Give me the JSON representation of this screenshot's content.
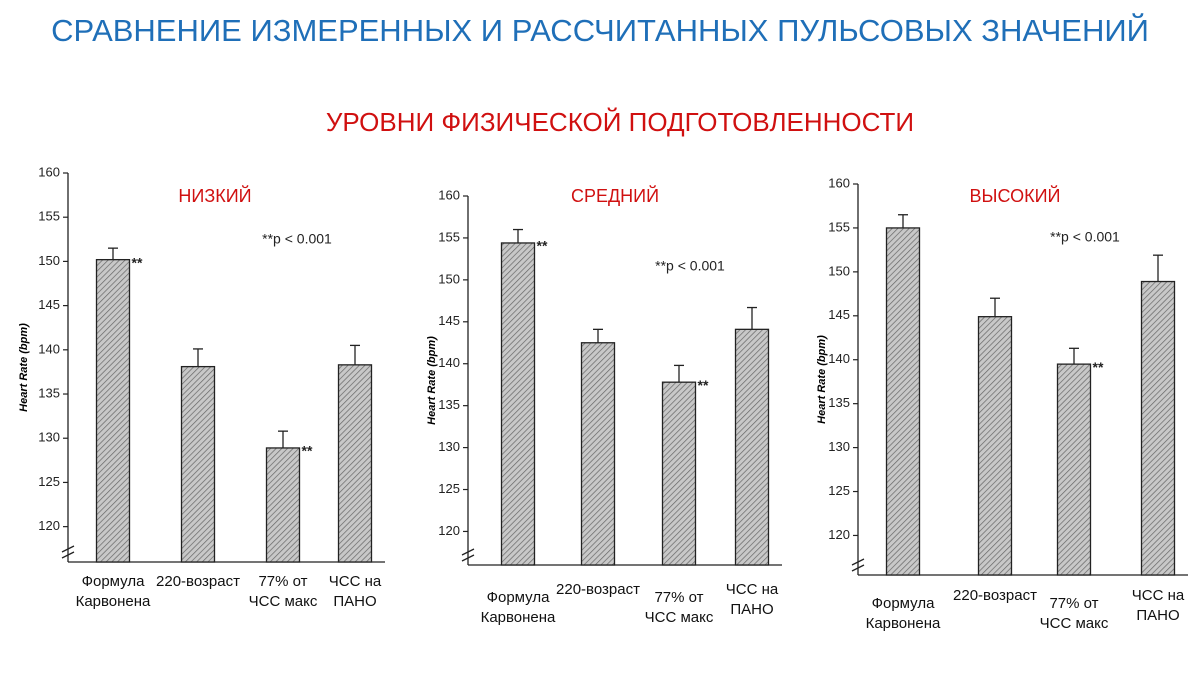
{
  "header": {
    "title": "СРАВНЕНИЕ ИЗМЕРЕННЫХ И РАССЧИТАННЫХ ПУЛЬСОВЫХ ЗНАЧЕНИЙ",
    "subtitle": "УРОВНИ ФИЗИЧЕСКОЙ ПОДГОТОВЛЕННОСТИ"
  },
  "chart_data": [
    {
      "type": "bar",
      "title": "НИЗКИЙ",
      "ylabel": "Heart Rate (bpm)",
      "categories": [
        "Формула Карвонена",
        "220-возраст",
        "77% от ЧСС макс",
        "ЧСС на ПАНО"
      ],
      "values": [
        150.2,
        138.1,
        128.9,
        138.3
      ],
      "errors": [
        1.3,
        2.0,
        1.9,
        2.2
      ],
      "markers": [
        "**",
        null,
        "**",
        null
      ],
      "note": "**p < 0.001",
      "color": "#b4b4b4",
      "ylim": [
        116,
        160
      ],
      "yticks": [
        120,
        125,
        130,
        135,
        140,
        145,
        150,
        155,
        160
      ]
    },
    {
      "type": "bar",
      "title": "СРЕДНИЙ",
      "ylabel": "Heart Rate (bpm)",
      "categories": [
        "Формула Карвонена",
        "220-возраст",
        "77% от ЧСС макс",
        "ЧСС на ПАНО"
      ],
      "values": [
        154.4,
        142.5,
        137.8,
        144.1
      ],
      "errors": [
        1.6,
        1.6,
        2.0,
        2.6
      ],
      "markers": [
        "**",
        null,
        "**",
        null
      ],
      "note": "**p < 0.001",
      "color": "#b4b4b4",
      "ylim": [
        116,
        160
      ],
      "yticks": [
        120,
        125,
        130,
        135,
        140,
        145,
        150,
        155,
        160
      ]
    },
    {
      "type": "bar",
      "title": "ВЫСОКИЙ",
      "ylabel": "Heart Rate (bpm)",
      "categories": [
        "Формула Карвонена",
        "220-возраст",
        "77% от ЧСС макс",
        "ЧСС на ПАНО"
      ],
      "values": [
        155.0,
        144.9,
        139.5,
        148.9
      ],
      "errors": [
        1.5,
        2.1,
        1.8,
        3.0
      ],
      "markers": [
        null,
        null,
        "**",
        null
      ],
      "note": "**p < 0.001",
      "color": "#b4b4b4",
      "ylim": [
        115.5,
        160
      ],
      "yticks": [
        120,
        125,
        130,
        135,
        140,
        145,
        150,
        155,
        160
      ]
    }
  ]
}
